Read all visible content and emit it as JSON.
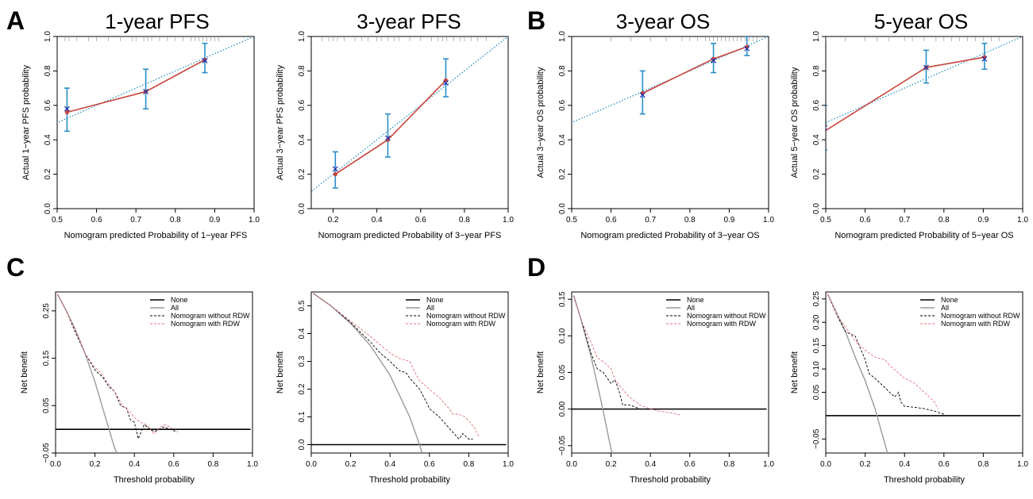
{
  "panel_labels": [
    "A",
    "B",
    "C",
    "D"
  ],
  "chart_data": [
    {
      "id": "cal-1yr-pfs",
      "type": "line",
      "title": "1-year PFS",
      "xlabel": "Nomogram predicted Probability of 1−year PFS",
      "ylabel": "Actual 1−year PFS probability",
      "xlim": [
        0.5,
        1.0
      ],
      "ylim": [
        0.0,
        1.0
      ],
      "xticks": [
        "0.5",
        "0.6",
        "0.7",
        "0.8",
        "0.9",
        "1.0"
      ],
      "yticks": [
        "0.0",
        "0.2",
        "0.4",
        "0.6",
        "0.8",
        "1.0"
      ],
      "ideal_line": [
        [
          0.47,
          0.47
        ],
        [
          1.02,
          1.02
        ]
      ],
      "points": [
        {
          "x": 0.525,
          "observed": 0.56,
          "ci": [
            0.45,
            0.7
          ],
          "corrected": 0.58
        },
        {
          "x": 0.725,
          "observed": 0.68,
          "ci": [
            0.58,
            0.81
          ],
          "corrected": 0.68
        },
        {
          "x": 0.875,
          "observed": 0.865,
          "ci": [
            0.79,
            0.96
          ],
          "corrected": 0.86
        }
      ],
      "rug": [
        0.52,
        0.53,
        0.55,
        0.58,
        0.6,
        0.63,
        0.66,
        0.69,
        0.7,
        0.72,
        0.73,
        0.74,
        0.76,
        0.78,
        0.8,
        0.82,
        0.84,
        0.85,
        0.86,
        0.87,
        0.88,
        0.89,
        0.9,
        0.91
      ]
    },
    {
      "id": "cal-3yr-pfs",
      "type": "line",
      "title": "3-year PFS",
      "xlabel": "Nomogram predicted Probability of 3−year PFS",
      "ylabel": "Actual 3−year PFS probability",
      "xlim": [
        0.1,
        1.0
      ],
      "ylim": [
        0.0,
        1.0
      ],
      "xticks": [
        "0.2",
        "0.4",
        "0.6",
        "0.8",
        "1.0"
      ],
      "yticks": [
        "0.0",
        "0.2",
        "0.4",
        "0.6",
        "0.8",
        "1.0"
      ],
      "ideal_line": [
        [
          0.07,
          0.07
        ],
        [
          1.02,
          1.02
        ]
      ],
      "points": [
        {
          "x": 0.21,
          "observed": 0.2,
          "ci": [
            0.12,
            0.33
          ],
          "corrected": 0.23
        },
        {
          "x": 0.45,
          "observed": 0.4,
          "ci": [
            0.3,
            0.55
          ],
          "corrected": 0.41
        },
        {
          "x": 0.715,
          "observed": 0.745,
          "ci": [
            0.65,
            0.87
          ],
          "corrected": 0.73
        }
      ],
      "rug": [
        0.15,
        0.18,
        0.2,
        0.22,
        0.25,
        0.3,
        0.33,
        0.36,
        0.4,
        0.42,
        0.45,
        0.48,
        0.5,
        0.55,
        0.6,
        0.65,
        0.68,
        0.7,
        0.72,
        0.75,
        0.78,
        0.8,
        0.83,
        0.86,
        0.9
      ]
    },
    {
      "id": "cal-3yr-os",
      "type": "line",
      "title": "3-year OS",
      "xlabel": "Nomogram predicted Probability of 3−year OS",
      "ylabel": "Actual 3−year OS probability",
      "xlim": [
        0.5,
        1.0
      ],
      "ylim": [
        0.0,
        1.0
      ],
      "xticks": [
        "0.5",
        "0.6",
        "0.7",
        "0.8",
        "0.9",
        "1.0"
      ],
      "yticks": [
        "0.0",
        "0.2",
        "0.4",
        "0.6",
        "0.8",
        "1.0"
      ],
      "ideal_line": [
        [
          0.47,
          0.47
        ],
        [
          1.02,
          1.02
        ]
      ],
      "points": [
        {
          "x": 0.68,
          "observed": 0.67,
          "ci": [
            0.55,
            0.8
          ],
          "corrected": 0.66
        },
        {
          "x": 0.86,
          "observed": 0.87,
          "ci": [
            0.79,
            0.96
          ],
          "corrected": 0.86
        },
        {
          "x": 0.945,
          "observed": 0.94,
          "ci": [
            0.89,
            1.0
          ],
          "corrected": 0.93
        }
      ],
      "rug": [
        0.6,
        0.65,
        0.7,
        0.74,
        0.78,
        0.8,
        0.82,
        0.84,
        0.85,
        0.86,
        0.87,
        0.88,
        0.89,
        0.9,
        0.91,
        0.92,
        0.93,
        0.94,
        0.95,
        0.96,
        0.97
      ]
    },
    {
      "id": "cal-5yr-os",
      "type": "line",
      "title": "5-year OS",
      "xlabel": "Nomogram predicted Probability of 5−year OS",
      "ylabel": "Actual 5−year OS probability",
      "xlim": [
        0.5,
        1.0
      ],
      "ylim": [
        0.0,
        1.0
      ],
      "xticks": [
        "0.5",
        "0.6",
        "0.7",
        "0.8",
        "0.9",
        "1.0"
      ],
      "yticks": [
        "0.0",
        "0.2",
        "0.4",
        "0.6",
        "0.8",
        "1.0"
      ],
      "ideal_line": [
        [
          0.48,
          0.48
        ],
        [
          1.02,
          1.02
        ]
      ],
      "points": [
        {
          "x": 0.497,
          "observed": 0.45,
          "ci": [
            0.34,
            0.6
          ],
          "corrected": 0.47
        },
        {
          "x": 0.755,
          "observed": 0.82,
          "ci": [
            0.73,
            0.92
          ],
          "corrected": 0.82
        },
        {
          "x": 0.903,
          "observed": 0.88,
          "ci": [
            0.81,
            0.96
          ],
          "corrected": 0.87
        }
      ],
      "rug": [
        0.5,
        0.55,
        0.6,
        0.63,
        0.66,
        0.7,
        0.72,
        0.75,
        0.78,
        0.8,
        0.82,
        0.84,
        0.86,
        0.88,
        0.9,
        0.92,
        0.94
      ]
    },
    {
      "id": "dca-1",
      "type": "line",
      "title": "",
      "xlabel": "Threshold probability",
      "ylabel": "Net benefit",
      "xlim": [
        0.0,
        1.0
      ],
      "ylim": [
        -0.05,
        0.29
      ],
      "xticks": [
        "0.0",
        "0.2",
        "0.4",
        "0.6",
        "0.8",
        "1.0"
      ],
      "yticks": [
        "−0.05",
        "0.05",
        "0.15",
        "0.25"
      ],
      "ytick_values": [
        -0.05,
        0.05,
        0.15,
        0.25
      ],
      "legend": [
        "None",
        "All",
        "Nomogram without RDW",
        "Nomogram with RDW"
      ],
      "series": [
        {
          "name": "None",
          "x": [
            0.0,
            0.99
          ],
          "y": [
            0.0,
            0.0
          ]
        },
        {
          "name": "All",
          "x": [
            0.01,
            0.05,
            0.1,
            0.15,
            0.2,
            0.25,
            0.3,
            0.33
          ],
          "y": [
            0.285,
            0.254,
            0.211,
            0.16,
            0.1,
            0.03,
            -0.04,
            -0.065
          ]
        },
        {
          "name": "Nomogram without RDW",
          "x": [
            0.01,
            0.06,
            0.1,
            0.15,
            0.2,
            0.24,
            0.27,
            0.3,
            0.33,
            0.36,
            0.38,
            0.4,
            0.42,
            0.45,
            0.48,
            0.5,
            0.55,
            0.6,
            0.62
          ],
          "y": [
            0.285,
            0.245,
            0.205,
            0.16,
            0.125,
            0.11,
            0.09,
            0.08,
            0.05,
            0.045,
            0.02,
            0.015,
            -0.02,
            0.01,
            0.0,
            -0.005,
            0.005,
            -0.003,
            -0.005
          ]
        },
        {
          "name": "Nomogram with RDW",
          "x": [
            0.01,
            0.06,
            0.1,
            0.15,
            0.2,
            0.23,
            0.26,
            0.3,
            0.34,
            0.37,
            0.4,
            0.43,
            0.46,
            0.5,
            0.52,
            0.55,
            0.58,
            0.6
          ],
          "y": [
            0.285,
            0.245,
            0.21,
            0.16,
            0.13,
            0.12,
            0.1,
            0.08,
            0.05,
            0.04,
            0.025,
            0.015,
            0.01,
            -0.01,
            0.0,
            0.01,
            0.005,
            0.0
          ]
        }
      ]
    },
    {
      "id": "dca-2",
      "type": "line",
      "title": "",
      "xlabel": "Threshold probability",
      "ylabel": "Net benefit",
      "xlim": [
        0.0,
        1.0
      ],
      "ylim": [
        -0.03,
        0.55
      ],
      "xticks": [
        "0.0",
        "0.2",
        "0.4",
        "0.6",
        "0.8",
        "1.0"
      ],
      "yticks": [
        "0.0",
        "0.1",
        "0.2",
        "0.3",
        "0.4",
        "0.5"
      ],
      "ytick_values": [
        0.0,
        0.1,
        0.2,
        0.3,
        0.4,
        0.5
      ],
      "legend": [
        "None",
        "All",
        "Nomogram without RDW",
        "Nomogram with RDW"
      ],
      "series": [
        {
          "name": "None",
          "x": [
            0.0,
            0.99
          ],
          "y": [
            0.0,
            0.0
          ]
        },
        {
          "name": "All",
          "x": [
            0.01,
            0.1,
            0.2,
            0.3,
            0.4,
            0.5,
            0.55,
            0.58
          ],
          "y": [
            0.545,
            0.5,
            0.437,
            0.357,
            0.25,
            0.1,
            0.0,
            -0.07
          ]
        },
        {
          "name": "Nomogram without RDW",
          "x": [
            0.01,
            0.1,
            0.2,
            0.3,
            0.35,
            0.4,
            0.45,
            0.48,
            0.5,
            0.55,
            0.58,
            0.6,
            0.65,
            0.7,
            0.75,
            0.77,
            0.8,
            0.82
          ],
          "y": [
            0.545,
            0.5,
            0.44,
            0.37,
            0.33,
            0.3,
            0.265,
            0.26,
            0.24,
            0.2,
            0.16,
            0.13,
            0.1,
            0.06,
            0.02,
            0.04,
            0.02,
            0.02
          ]
        },
        {
          "name": "Nomogram with RDW",
          "x": [
            0.01,
            0.1,
            0.2,
            0.3,
            0.35,
            0.4,
            0.45,
            0.5,
            0.52,
            0.55,
            0.6,
            0.65,
            0.7,
            0.72,
            0.75,
            0.78,
            0.8,
            0.83,
            0.85
          ],
          "y": [
            0.545,
            0.5,
            0.445,
            0.39,
            0.36,
            0.33,
            0.31,
            0.3,
            0.27,
            0.23,
            0.2,
            0.17,
            0.13,
            0.11,
            0.11,
            0.1,
            0.085,
            0.06,
            0.03
          ]
        }
      ]
    },
    {
      "id": "dca-3",
      "type": "line",
      "title": "",
      "xlabel": "Threshold probability",
      "ylabel": "Net benefit",
      "xlim": [
        0.0,
        1.0
      ],
      "ylim": [
        -0.06,
        0.16
      ],
      "xticks": [
        "0.0",
        "0.2",
        "0.4",
        "0.6",
        "0.8",
        "1.0"
      ],
      "yticks": [
        "−0.05",
        "0.00",
        "0.05",
        "0.10",
        "0.15"
      ],
      "ytick_values": [
        -0.05,
        0.0,
        0.05,
        0.1,
        0.15
      ],
      "legend": [
        "None",
        "All",
        "Nomogram without RDW",
        "Nomogram with RDW"
      ],
      "series": [
        {
          "name": "None",
          "x": [
            0.0,
            0.99
          ],
          "y": [
            0.0,
            0.0
          ]
        },
        {
          "name": "All",
          "x": [
            0.01,
            0.05,
            0.1,
            0.15,
            0.2,
            0.22
          ],
          "y": [
            0.155,
            0.12,
            0.07,
            0.01,
            -0.055,
            -0.075
          ]
        },
        {
          "name": "Nomogram without RDW",
          "x": [
            0.01,
            0.05,
            0.1,
            0.13,
            0.16,
            0.2,
            0.22,
            0.24,
            0.26,
            0.28,
            0.3,
            0.33,
            0.35
          ],
          "y": [
            0.155,
            0.12,
            0.075,
            0.055,
            0.05,
            0.035,
            0.04,
            0.025,
            0.005,
            0.006,
            0.005,
            0.002,
            0.0
          ]
        },
        {
          "name": "Nomogram with RDW",
          "x": [
            0.01,
            0.05,
            0.1,
            0.13,
            0.16,
            0.2,
            0.22,
            0.25,
            0.28,
            0.3,
            0.35,
            0.4,
            0.45,
            0.5,
            0.55
          ],
          "y": [
            0.155,
            0.12,
            0.09,
            0.07,
            0.065,
            0.055,
            0.04,
            0.03,
            0.02,
            0.015,
            0.005,
            0.0,
            -0.003,
            -0.005,
            -0.008
          ]
        }
      ]
    },
    {
      "id": "dca-4",
      "type": "line",
      "title": "",
      "xlabel": "Threshold probability",
      "ylabel": "Net benefit",
      "xlim": [
        0.0,
        1.0
      ],
      "ylim": [
        -0.08,
        0.265
      ],
      "xticks": [
        "0.0",
        "0.2",
        "0.4",
        "0.6",
        "0.8",
        "1.0"
      ],
      "yticks": [
        "−0.05",
        "0.05",
        "0.10",
        "0.15",
        "0.20",
        "0.25"
      ],
      "ytick_values": [
        -0.05,
        0.05,
        0.1,
        0.15,
        0.2,
        0.25
      ],
      "legend": [
        "None",
        "All",
        "Nomogram without RDW",
        "Nomogram with RDW"
      ],
      "series": [
        {
          "name": "None",
          "x": [
            0.0,
            0.99
          ],
          "y": [
            0.0,
            0.0
          ]
        },
        {
          "name": "All",
          "x": [
            0.01,
            0.05,
            0.1,
            0.15,
            0.2,
            0.25,
            0.3,
            0.32
          ],
          "y": [
            0.26,
            0.225,
            0.18,
            0.125,
            0.075,
            0.015,
            -0.06,
            -0.09
          ]
        },
        {
          "name": "Nomogram without RDW",
          "x": [
            0.01,
            0.05,
            0.1,
            0.15,
            0.18,
            0.2,
            0.22,
            0.25,
            0.3,
            0.35,
            0.37,
            0.38,
            0.4,
            0.45,
            0.5,
            0.55,
            0.6
          ],
          "y": [
            0.26,
            0.22,
            0.18,
            0.17,
            0.14,
            0.12,
            0.09,
            0.08,
            0.06,
            0.04,
            0.05,
            0.03,
            0.02,
            0.018,
            0.015,
            0.01,
            0.003
          ]
        },
        {
          "name": "Nomogram with RDW",
          "x": [
            0.01,
            0.05,
            0.1,
            0.15,
            0.2,
            0.25,
            0.3,
            0.33,
            0.36,
            0.4,
            0.45,
            0.5,
            0.55,
            0.57
          ],
          "y": [
            0.26,
            0.22,
            0.19,
            0.16,
            0.14,
            0.125,
            0.12,
            0.105,
            0.095,
            0.08,
            0.07,
            0.05,
            0.03,
            0.015
          ]
        }
      ]
    }
  ]
}
